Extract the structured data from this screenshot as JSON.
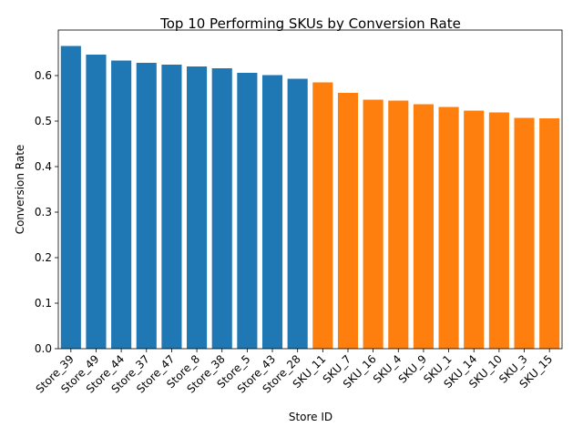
{
  "chart_data": {
    "type": "bar",
    "title": "Top 10 Performing SKUs by Conversion Rate",
    "xlabel": "Store ID",
    "ylabel": "Conversion Rate",
    "ylim": [
      0,
      0.7
    ],
    "yticks": [
      "0.0",
      "0.1",
      "0.2",
      "0.3",
      "0.4",
      "0.5",
      "0.6"
    ],
    "grid": false,
    "legend": "none",
    "categories": [
      "Store_39",
      "Store_49",
      "Store_44",
      "Store_37",
      "Store_47",
      "Store_8",
      "Store_38",
      "Store_5",
      "Store_43",
      "Store_28",
      "SKU_11",
      "SKU_7",
      "SKU_16",
      "SKU_4",
      "SKU_9",
      "SKU_1",
      "SKU_14",
      "SKU_10",
      "SKU_3",
      "SKU_15"
    ],
    "values": [
      0.665,
      0.646,
      0.633,
      0.628,
      0.624,
      0.62,
      0.616,
      0.606,
      0.601,
      0.593,
      0.585,
      0.562,
      0.547,
      0.545,
      0.537,
      0.531,
      0.523,
      0.519,
      0.507,
      0.506
    ],
    "colors": [
      "#1f77b4",
      "#1f77b4",
      "#1f77b4",
      "#1f77b4",
      "#1f77b4",
      "#1f77b4",
      "#1f77b4",
      "#1f77b4",
      "#1f77b4",
      "#1f77b4",
      "#ff7f0e",
      "#ff7f0e",
      "#ff7f0e",
      "#ff7f0e",
      "#ff7f0e",
      "#ff7f0e",
      "#ff7f0e",
      "#ff7f0e",
      "#ff7f0e",
      "#ff7f0e"
    ]
  }
}
